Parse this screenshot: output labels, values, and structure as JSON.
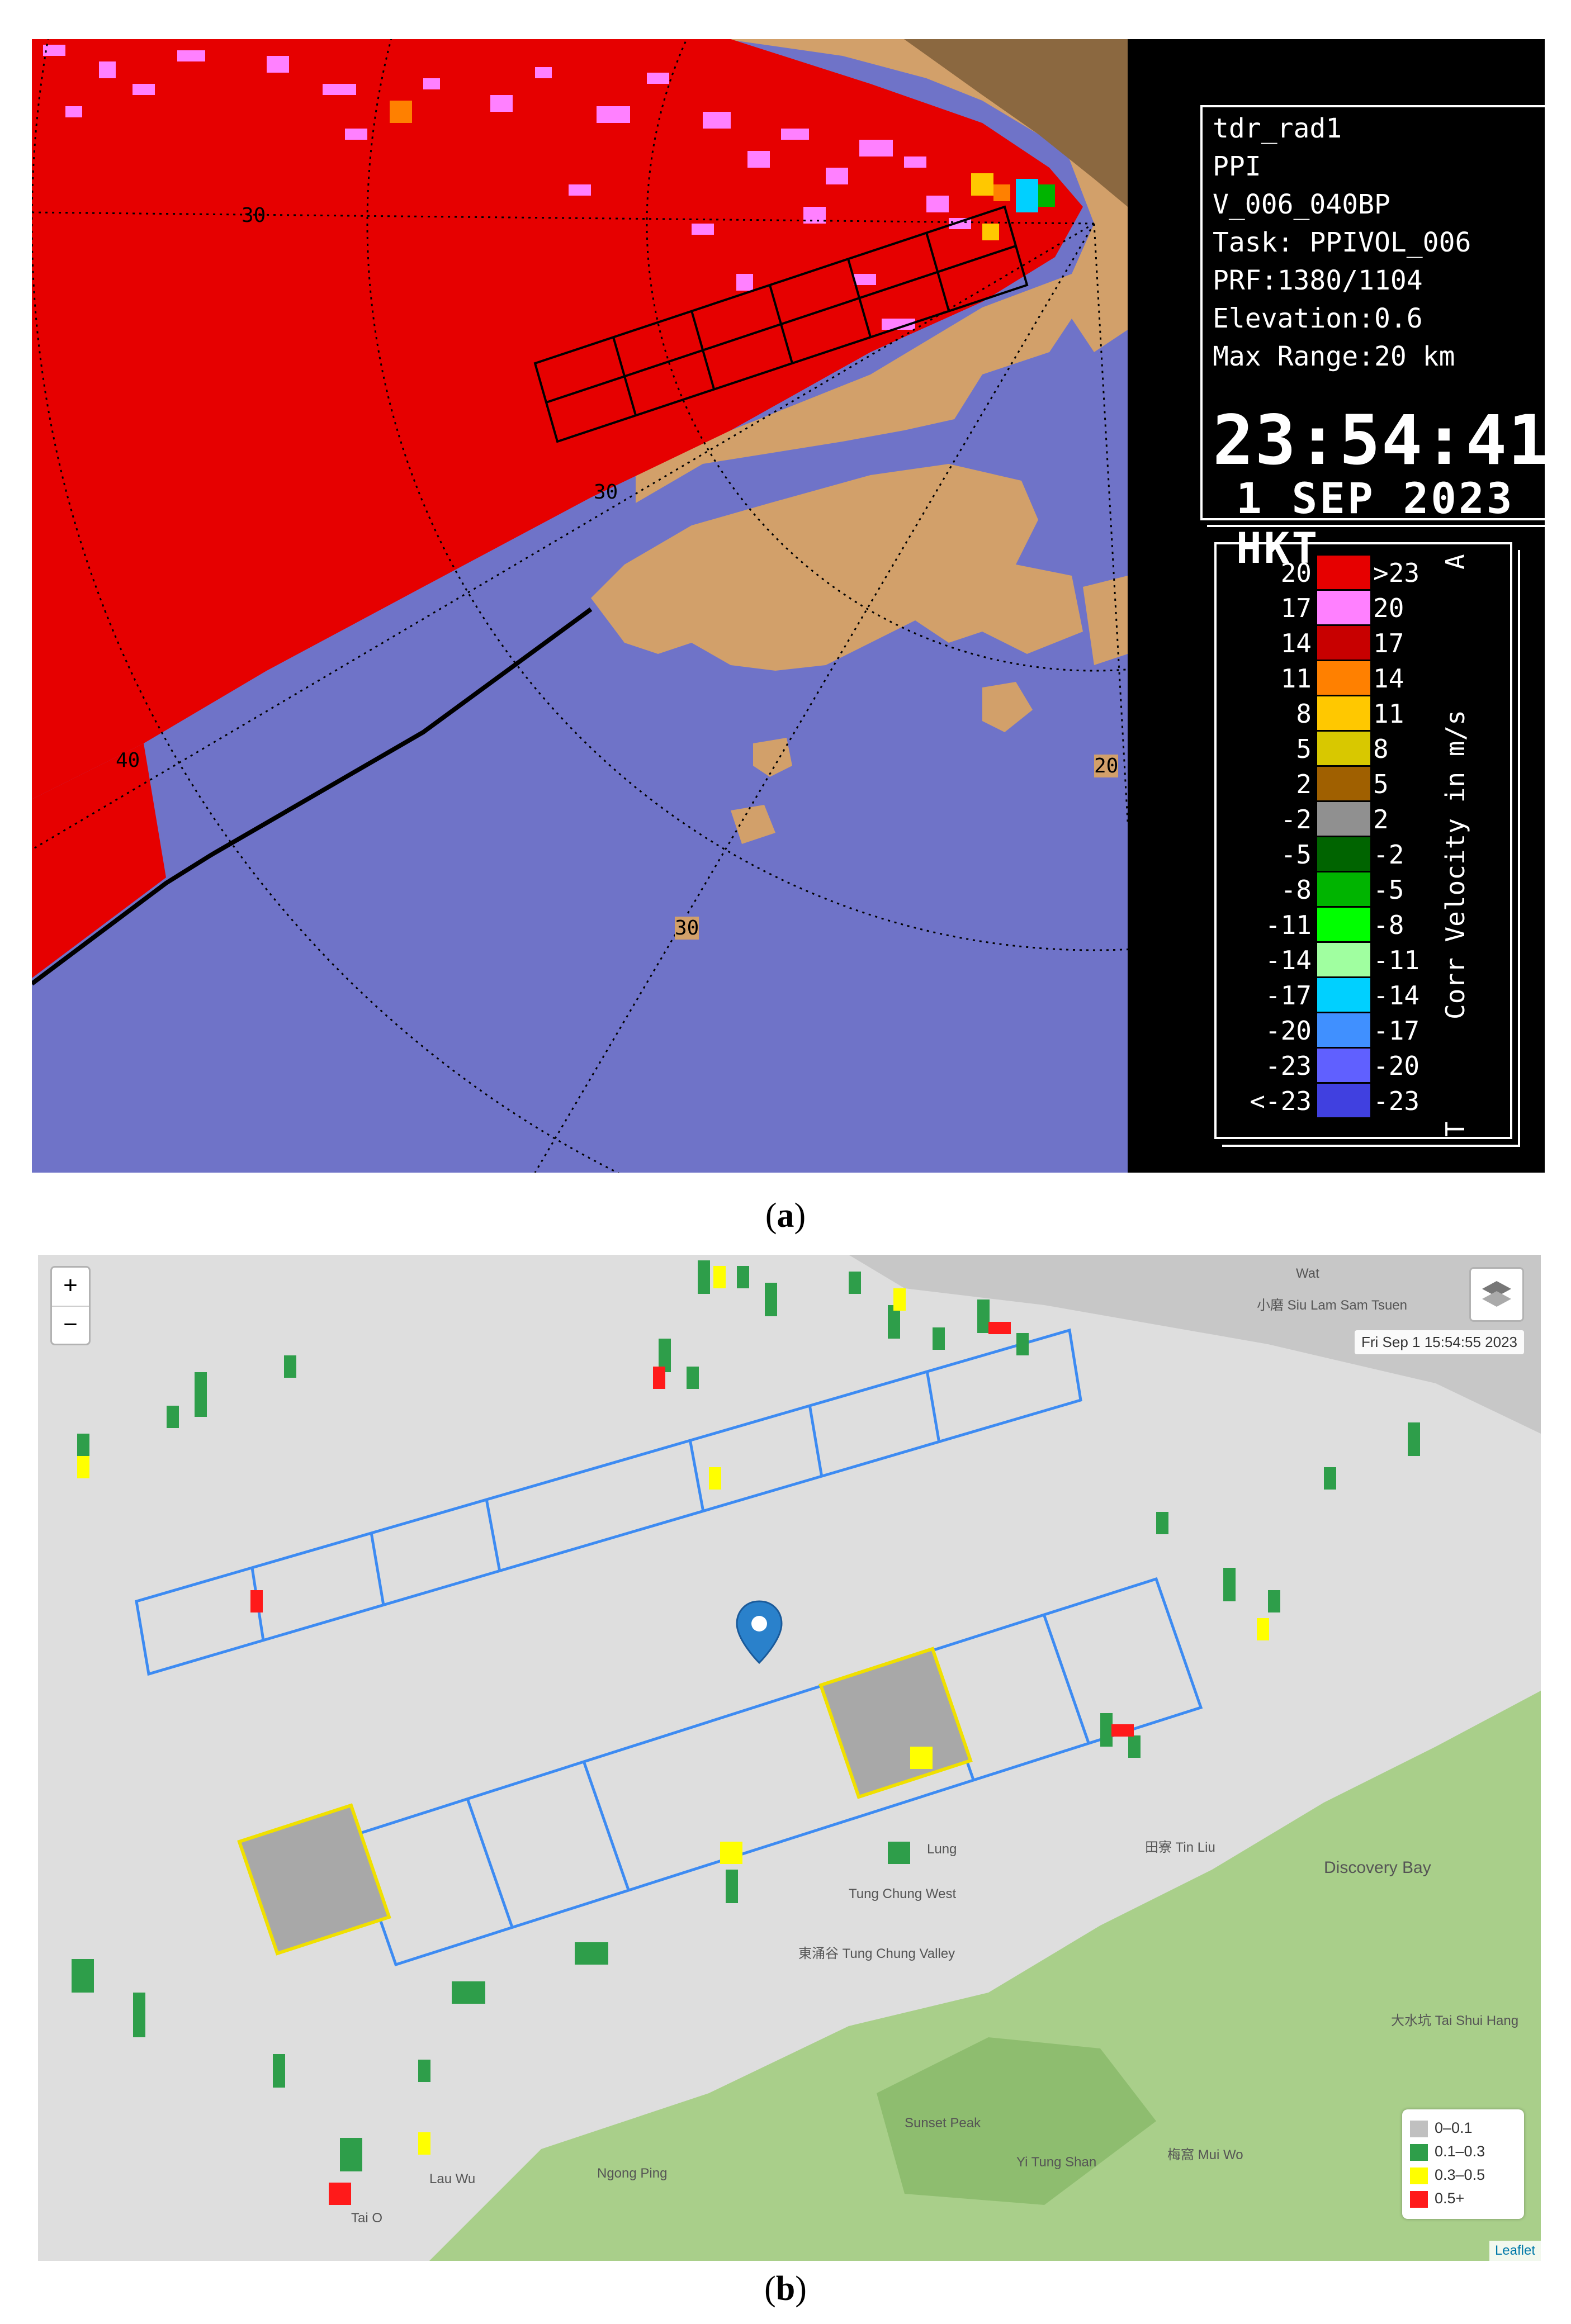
{
  "panel_a": {
    "caption_letter": "a",
    "info": {
      "radar": "tdr_rad1",
      "scan": "PPI",
      "product": "V_006_040BP",
      "task": "Task: PPIVOL_006",
      "prf": "PRF:1380/1104",
      "elevation": "Elevation:0.6",
      "max_range": "Max Range:20 km",
      "time": "23:54:41",
      "date": "1 SEP 2023 HKT"
    },
    "range_labels": [
      "30",
      "30",
      "40",
      "20",
      "30"
    ],
    "legend": {
      "title": "Corr Velocity in m/s",
      "top_mark": "A",
      "bottom_mark": "T",
      "rows": [
        {
          "lo": "20",
          "hi": ">23",
          "color": "#e60000"
        },
        {
          "lo": "17",
          "hi": "20",
          "color": "#ff80ff"
        },
        {
          "lo": "14",
          "hi": "17",
          "color": "#c80000"
        },
        {
          "lo": "11",
          "hi": "14",
          "color": "#ff8000"
        },
        {
          "lo": "8",
          "hi": "11",
          "color": "#ffc800"
        },
        {
          "lo": "5",
          "hi": "8",
          "color": "#d8c800"
        },
        {
          "lo": "2",
          "hi": "5",
          "color": "#a06000"
        },
        {
          "lo": "-2",
          "hi": "2",
          "color": "#909090"
        },
        {
          "lo": "-5",
          "hi": "-2",
          "color": "#006400"
        },
        {
          "lo": "-8",
          "hi": "-5",
          "color": "#00b400"
        },
        {
          "lo": "-11",
          "hi": "-8",
          "color": "#00ff00"
        },
        {
          "lo": "-14",
          "hi": "-11",
          "color": "#a0ffa0"
        },
        {
          "lo": "-17",
          "hi": "-14",
          "color": "#00d0ff"
        },
        {
          "lo": "-20",
          "hi": "-17",
          "color": "#4090ff"
        },
        {
          "lo": "-23",
          "hi": "-20",
          "color": "#6060ff"
        },
        {
          "lo": "<-23",
          "hi": "-23",
          "color": "#4040e0"
        }
      ]
    },
    "colors": {
      "sea": "#6f73c8",
      "land": "#d2a06a",
      "echo": "#e60000",
      "dark_land": "#8b6840"
    }
  },
  "panel_b": {
    "caption_letter": "b",
    "zoom_in": "+",
    "zoom_out": "−",
    "timestamp": "Fri Sep 1 15:54:55 2023",
    "legend": [
      {
        "label": "0–0.1",
        "color": "#c0c0c0"
      },
      {
        "label": "0.1–0.3",
        "color": "#2e9e4a"
      },
      {
        "label": "0.3–0.5",
        "color": "#ffff00"
      },
      {
        "label": "0.5+",
        "color": "#ff1a1a"
      }
    ],
    "attribution": "Leaflet",
    "places": [
      "Discovery Bay",
      "Tung Chung West",
      "東涌谷 Tung Chung Valley",
      "Ngong Ping",
      "Tai O",
      "梅窩 Mui Wo",
      "大水坑 Tai Shui Hang",
      "Wat",
      "小磨 Siu Lam Sam Tsuen",
      "田寮 Tin Liu",
      "Yi Tung Shan",
      "Sunset Peak",
      "Lau Wu",
      "Lung"
    ],
    "colors": {
      "background": "#dedede",
      "grid": "#3d8bf2",
      "highlight": "#f0e000",
      "hill": "#a9cf8a"
    }
  }
}
